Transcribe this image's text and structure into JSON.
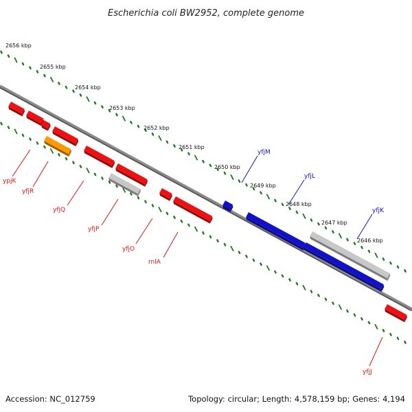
{
  "title": "Escherichia coli BW2952, complete genome",
  "footer": {
    "accession": "Accession: NC_012759",
    "summary": "Topology: circular; Length: 4,578,159 bp; Genes: 4,194"
  },
  "colors": {
    "backbone": "#7a7a7a",
    "tick_dots": "#1a7a1a",
    "forward_gene": "#1111cc",
    "reverse_gene": "#ee1111",
    "rRNA_gene": "#ff9900",
    "pseudo_gene": "#c8c8c8",
    "forward_label": "#1111cc",
    "reverse_label": "#dd1111"
  },
  "scale_labels": [
    "2656 kbp",
    "2655 kbp",
    "2654 kbp",
    "2653 kbp",
    "2652 kbp",
    "2651 kbp",
    "2650 kbp",
    "2649 kbp",
    "2648 kbp",
    "2647 kbp",
    "2646 kbp"
  ],
  "reverse_gene_labels": [
    "ypjK",
    "yfjR",
    "yfjQ",
    "yfjP",
    "yfjO",
    "rnlA",
    "yfjJ"
  ],
  "forward_gene_labels": [
    "yfjM",
    "yfjL",
    "yfjK"
  ]
}
